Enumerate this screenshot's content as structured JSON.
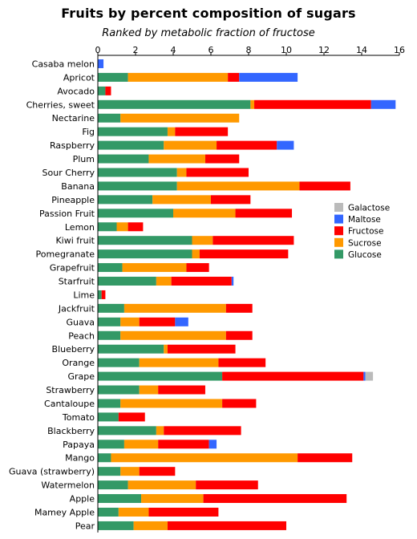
{
  "chart_data": {
    "type": "bar",
    "orientation": "horizontal",
    "stacked": true,
    "title": "Fruits by percent composition of sugars",
    "subtitle": "Ranked by metabolic fraction of fructose",
    "xlim": [
      0,
      16
    ],
    "xticks": [
      0,
      2,
      4,
      6,
      8,
      10,
      12,
      14,
      16
    ],
    "xaxis_position": "top",
    "grid": false,
    "legend_position": "right",
    "categories": [
      "Casaba melon",
      "Apricot",
      "Avocado",
      "Cherries, sweet",
      "Nectarine",
      "Fig",
      "Raspberry",
      "Plum",
      "Sour Cherry",
      "Banana",
      "Pineapple",
      "Passion Fruit",
      "Lemon",
      "Kiwi fruit",
      "Pomegranate",
      "Grapefruit",
      "Starfruit",
      "Lime",
      "Jackfruit",
      "Guava",
      "Peach",
      "Blueberry",
      "Orange",
      "Grape",
      "Strawberry",
      "Cantaloupe",
      "Tomato",
      "Blackberry",
      "Papaya",
      "Mango",
      "Guava (strawberry)",
      "Watermelon",
      "Apple",
      "Mamey Apple",
      "Pear"
    ],
    "series": [
      {
        "name": "Glucose",
        "color": "#339966",
        "values": [
          0,
          1.6,
          0.4,
          8.1,
          1.2,
          3.7,
          3.5,
          2.7,
          4.2,
          4.2,
          2.9,
          4.0,
          1.0,
          5.0,
          5.0,
          1.3,
          3.1,
          0.2,
          1.4,
          1.2,
          1.2,
          3.5,
          2.2,
          6.6,
          2.2,
          1.2,
          1.1,
          3.1,
          1.4,
          0.7,
          1.2,
          1.6,
          2.3,
          1.1,
          1.9
        ]
      },
      {
        "name": "Sucrose",
        "color": "#ff9900",
        "values": [
          0,
          5.3,
          0,
          0.2,
          6.3,
          0.4,
          2.8,
          3.0,
          0.5,
          6.5,
          3.1,
          3.3,
          0.6,
          1.1,
          0.4,
          3.4,
          0.8,
          0,
          5.4,
          1.0,
          5.6,
          0.2,
          4.2,
          0,
          1.0,
          5.4,
          0,
          0.4,
          1.8,
          9.9,
          1.0,
          3.6,
          3.3,
          1.6,
          1.8
        ]
      },
      {
        "name": "Fructose",
        "color": "#ff0000",
        "values": [
          0,
          0.6,
          0.3,
          6.2,
          0,
          2.8,
          3.2,
          1.8,
          3.3,
          2.7,
          2.1,
          3.0,
          0.8,
          4.3,
          4.7,
          1.2,
          3.2,
          0.2,
          1.4,
          1.9,
          1.4,
          3.6,
          2.5,
          7.5,
          2.5,
          1.8,
          1.4,
          4.1,
          2.7,
          2.9,
          1.9,
          3.3,
          7.6,
          3.7,
          6.3
        ]
      },
      {
        "name": "Maltose",
        "color": "#3366ff",
        "values": [
          0.3,
          3.1,
          0,
          1.3,
          0,
          0,
          0.9,
          0,
          0,
          0,
          0,
          0,
          0,
          0,
          0,
          0,
          0.1,
          0,
          0,
          0.7,
          0,
          0,
          0,
          0.1,
          0,
          0,
          0,
          0,
          0.4,
          0,
          0,
          0,
          0,
          0,
          0
        ]
      },
      {
        "name": "Galactose",
        "color": "#bbbbbb",
        "values": [
          0,
          0,
          0,
          0,
          0,
          0,
          0,
          0,
          0,
          0,
          0,
          0,
          0,
          0,
          0,
          0,
          0,
          0,
          0,
          0,
          0,
          0,
          0,
          0.4,
          0,
          0,
          0,
          0,
          0,
          0,
          0,
          0,
          0,
          0,
          0
        ]
      }
    ]
  }
}
